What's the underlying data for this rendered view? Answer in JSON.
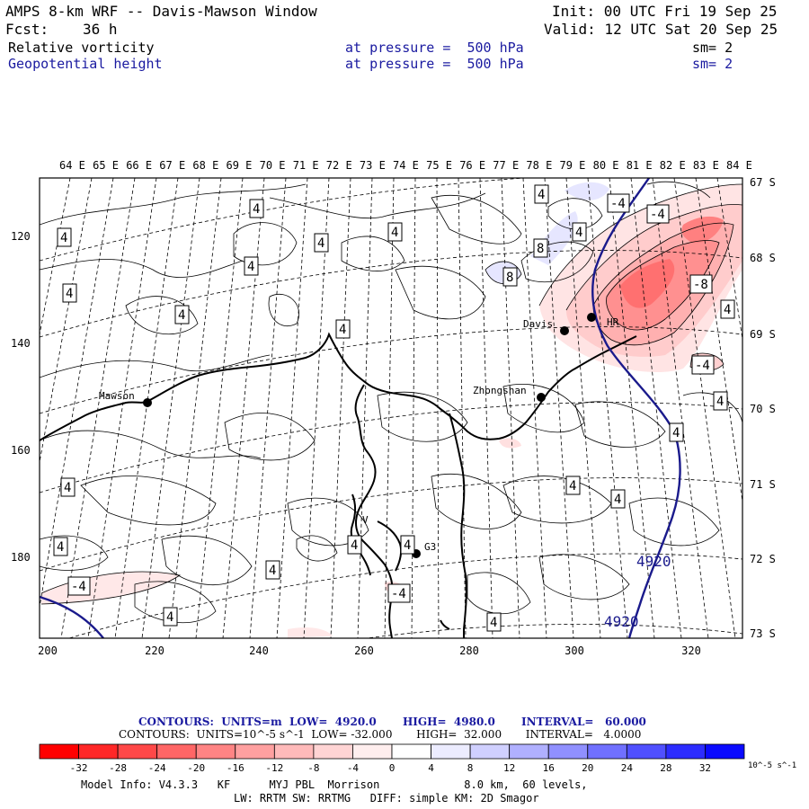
{
  "header": {
    "title": "AMPS 8-km WRF -- Davis-Mawson Window",
    "init": "Init: 00 UTC Fri 19 Sep 25",
    "fcst_label": "Fcst:",
    "fcst_value": "36 h",
    "valid": "Valid: 12 UTC Sat 20 Sep 25",
    "field1": {
      "name": "Relative vorticity",
      "level": "at pressure =  500 hPa",
      "sm": "sm= 2"
    },
    "field2": {
      "name": "Geopotential height",
      "level": "at pressure =  500 hPa",
      "sm": "sm= 2"
    }
  },
  "axes": {
    "top_lon": [
      "64 E",
      "65 E",
      "66 E",
      "67 E",
      "68 E",
      "69 E",
      "70 E",
      "71 E",
      "72 E",
      "73 E",
      "74 E",
      "75 E",
      "76 E",
      "77 E",
      "78 E",
      "79 E",
      "80 E",
      "81 E",
      "82 E",
      "83 E",
      "84 E"
    ],
    "right_lat": [
      "67 S",
      "68 S",
      "69 S",
      "70 S",
      "71 S",
      "72 S",
      "73 S"
    ],
    "bottom_x": [
      "200",
      "220",
      "240",
      "260",
      "280",
      "300",
      "320"
    ],
    "left_y": [
      "120",
      "140",
      "160",
      "180"
    ]
  },
  "stations": [
    {
      "name": "Mawson"
    },
    {
      "name": "Davis"
    },
    {
      "name": "HR"
    },
    {
      "name": "Zhongshan"
    },
    {
      "name": "G3"
    },
    {
      "name": "V"
    }
  ],
  "contour_labels": {
    "height": [
      "4920",
      "4920"
    ],
    "vorticity": [
      "4",
      "4",
      "4",
      "4",
      "4",
      "4",
      "4",
      "4",
      "4",
      "4",
      "4",
      "4",
      "4",
      "4",
      "4",
      "4",
      "4",
      "4",
      "4",
      "4",
      "-4",
      "-4",
      "-4",
      "-4",
      "-4",
      "-8",
      "8",
      "8",
      "4",
      "4"
    ]
  },
  "footer": {
    "contours1": "CONTOURS:  UNITS=m  LOW=  4920.0       HIGH=  4980.0       INTERVAL=   60.000",
    "contours2": "CONTOURS:  UNITS=10^-5 s^-1  LOW= -32.000       HIGH=  32.000       INTERVAL=   4.0000",
    "model_info": "Model Info: V4.3.3   KF      MYJ PBL  Morrison             8.0 km,  60 levels,",
    "model_info2": "LW: RRTM SW: RRTMG   DIFF: simple KM: 2D Smagor"
  },
  "colorbar": {
    "labels": [
      "-32",
      "-28",
      "-24",
      "-20",
      "-16",
      "-12",
      "-8",
      "-4",
      "0",
      "4",
      "8",
      "12",
      "16",
      "20",
      "24",
      "28",
      "32"
    ],
    "unit": "10^-5 s^-1",
    "colors": [
      "#ff0000",
      "#ff3030",
      "#ff5858",
      "#ff7a7a",
      "#ff9a9a",
      "#ffb6b6",
      "#ffd0d0",
      "#ffe8e8",
      "#ffffff",
      "#ffffff",
      "#e8e8ff",
      "#c8c8ff",
      "#a8a8ff",
      "#8888ff",
      "#6464ff",
      "#3c3cff",
      "#1010ff"
    ]
  }
}
